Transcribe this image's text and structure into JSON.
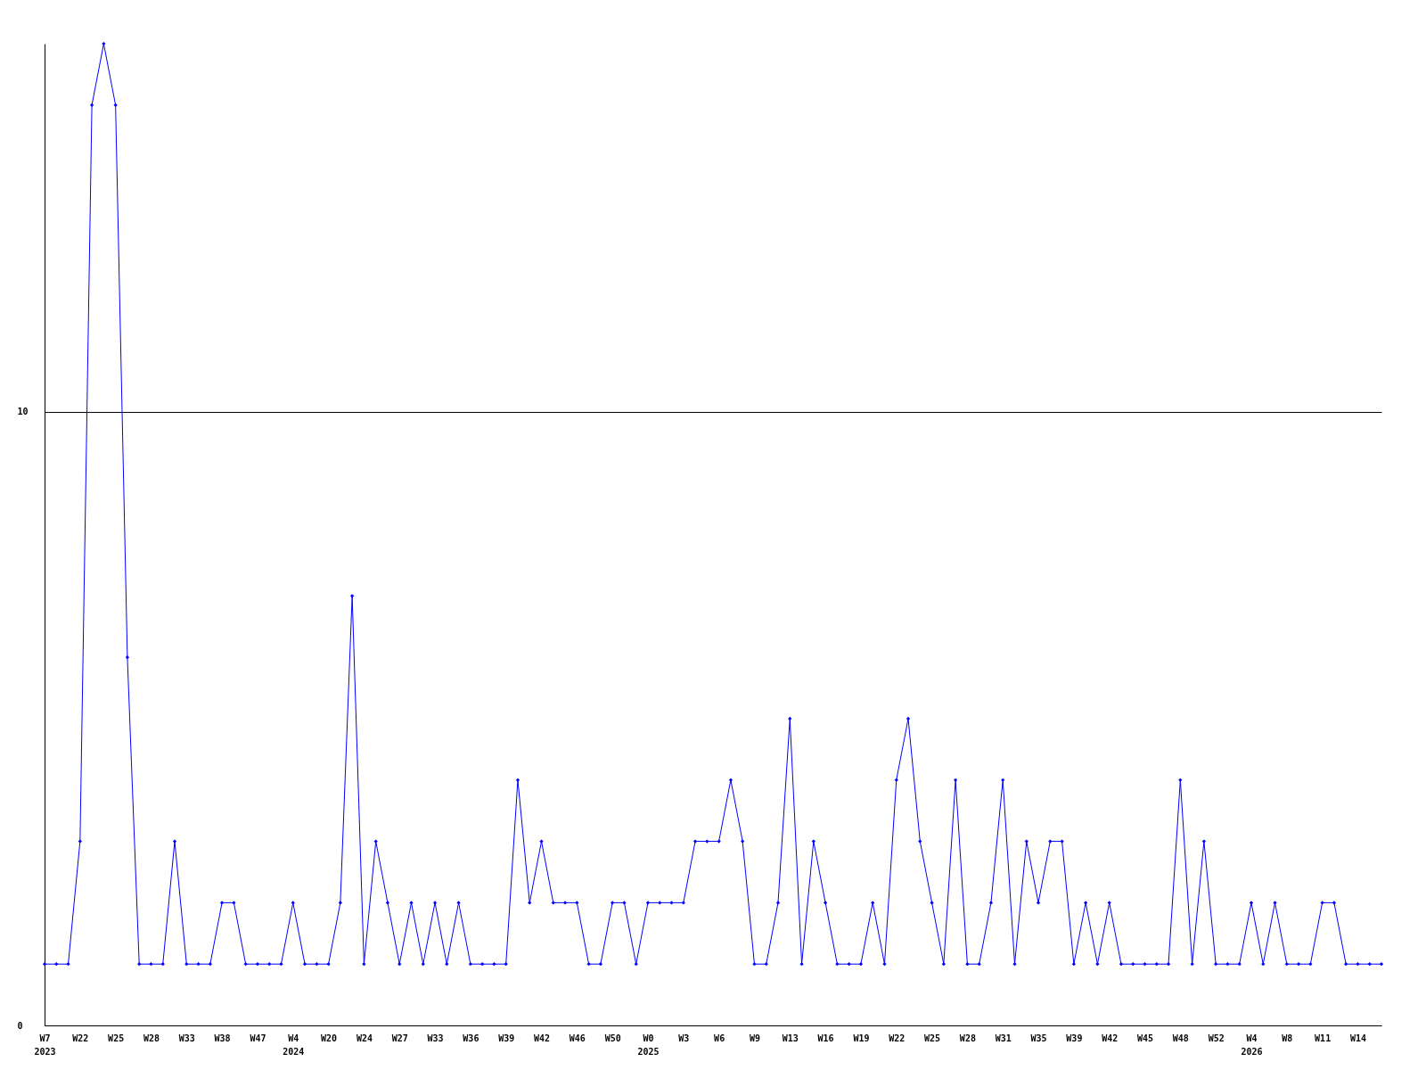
{
  "chart_data": {
    "type": "line",
    "categories": [
      "W7\n2023",
      null,
      null,
      "W22",
      null,
      null,
      "W25",
      null,
      null,
      "W28",
      null,
      null,
      "W33",
      null,
      null,
      "W38",
      null,
      null,
      "W47",
      null,
      null,
      "W4\n2024",
      null,
      null,
      "W20",
      null,
      null,
      "W24",
      null,
      null,
      "W27",
      null,
      null,
      "W33",
      null,
      null,
      "W36",
      null,
      null,
      "W39",
      null,
      null,
      "W42",
      null,
      null,
      "W46",
      null,
      null,
      "W50",
      null,
      null,
      "W0\n2025",
      null,
      null,
      "W3",
      null,
      null,
      "W6",
      null,
      null,
      "W9",
      null,
      null,
      "W13",
      null,
      null,
      "W16",
      null,
      null,
      "W19",
      null,
      null,
      "W22",
      null,
      null,
      "W25",
      null,
      null,
      "W28",
      null,
      null,
      "W31",
      null,
      null,
      "W35",
      null,
      null,
      "W39",
      null,
      null,
      "W42",
      null,
      null,
      "W45",
      null,
      null,
      "W48",
      null,
      null,
      "W52",
      null,
      null,
      "W4\n2026",
      null,
      null,
      "W8",
      null,
      null,
      "W11",
      null,
      null,
      "W14",
      null,
      null
    ],
    "series": [
      {
        "color": "#0000ff",
        "values": [
          1,
          1,
          1,
          3,
          15,
          16,
          15,
          6,
          1,
          1,
          1,
          3,
          1,
          1,
          1,
          2,
          2,
          1,
          1,
          1,
          1,
          2,
          1,
          1,
          1,
          2,
          7,
          1,
          3,
          2,
          1,
          2,
          1,
          2,
          1,
          2,
          1,
          1,
          1,
          1,
          4,
          2,
          3,
          2,
          2,
          2,
          1,
          1,
          2,
          2,
          1,
          2,
          2,
          2,
          2,
          3,
          3,
          3,
          4,
          3,
          1,
          1,
          2,
          5,
          1,
          3,
          2,
          1,
          1,
          1,
          2,
          1,
          4,
          5,
          3,
          2,
          1,
          4,
          1,
          1,
          2,
          4,
          1,
          3,
          2,
          3,
          3,
          1,
          2,
          1,
          2,
          1,
          1,
          1,
          1,
          1,
          4,
          1,
          3,
          1,
          1,
          1,
          2,
          1,
          2,
          1,
          1,
          1,
          2,
          2,
          1,
          1,
          1,
          1
        ]
      }
    ],
    "ylim": [
      0,
      16
    ],
    "yticks": [
      0,
      10
    ],
    "grid": "y",
    "marker": "diamond",
    "line_style": "solid"
  }
}
